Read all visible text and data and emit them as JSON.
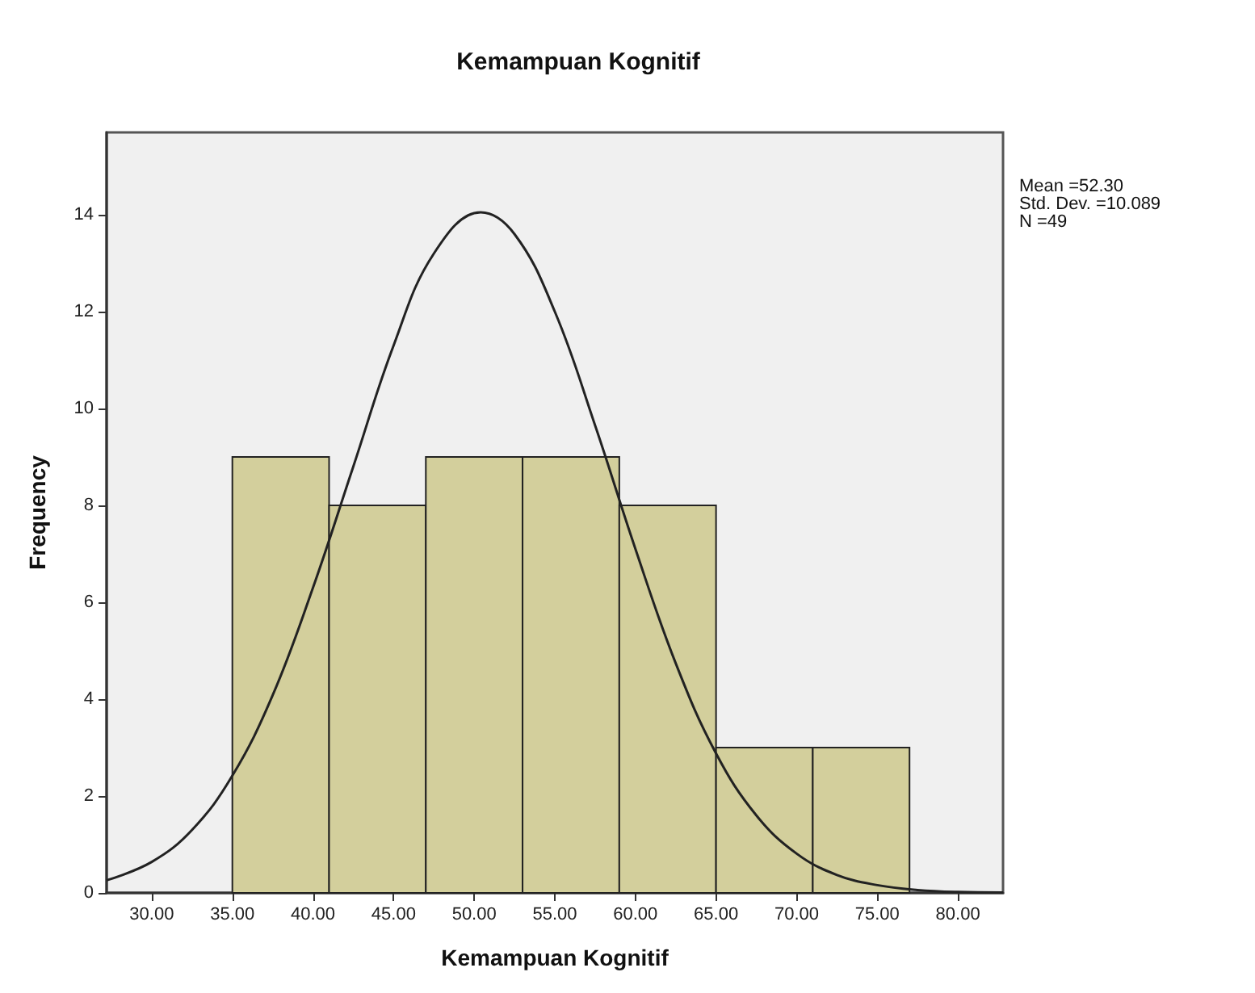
{
  "chart_data": {
    "type": "histogram",
    "title": "Kemampuan Kognitif",
    "xlabel": "Kemampuan Kognitif",
    "ylabel": "Frequency",
    "bins": [
      35,
      41,
      47,
      53,
      59,
      65,
      71,
      77
    ],
    "values": [
      9,
      8,
      9,
      9,
      8,
      3,
      3
    ],
    "color": "#d3cf9c",
    "series": [
      {
        "type": "line",
        "color": "#222222",
        "x": [
          27.2,
          30,
          32.5,
          35,
          37.5,
          40,
          42.5,
          45,
          47.5,
          50.4,
          52.5,
          55,
          57.5,
          60,
          62.5,
          65,
          67.5,
          70,
          72.5,
          75,
          77.5,
          80,
          82.8
        ],
        "values": [
          0.26,
          0.64,
          1.3,
          2.42,
          4.08,
          6.3,
          8.8,
          11.3,
          13.2,
          14.05,
          13.6,
          12.0,
          9.65,
          7.1,
          4.74,
          2.88,
          1.6,
          0.81,
          0.37,
          0.16,
          0.06,
          0.02,
          0.01
        ]
      }
    ],
    "xlim": [
      27.2,
      82.8
    ],
    "ylim": [
      0,
      15.7
    ],
    "xticks": [
      {
        "value": 30,
        "label": "30.00"
      },
      {
        "value": 35,
        "label": "35.00"
      },
      {
        "value": 40,
        "label": "40.00"
      },
      {
        "value": 45,
        "label": "45.00"
      },
      {
        "value": 50,
        "label": "50.00"
      },
      {
        "value": 55,
        "label": "55.00"
      },
      {
        "value": 60,
        "label": "60.00"
      },
      {
        "value": 65,
        "label": "65.00"
      },
      {
        "value": 70,
        "label": "70.00"
      },
      {
        "value": 75,
        "label": "75.00"
      },
      {
        "value": 80,
        "label": "80.00"
      }
    ],
    "yticks": [
      0,
      2,
      4,
      6,
      8,
      10,
      12,
      14
    ],
    "annotations": [
      "Mean =52.30",
      "Std. Dev. =10.089",
      "N =49"
    ]
  }
}
